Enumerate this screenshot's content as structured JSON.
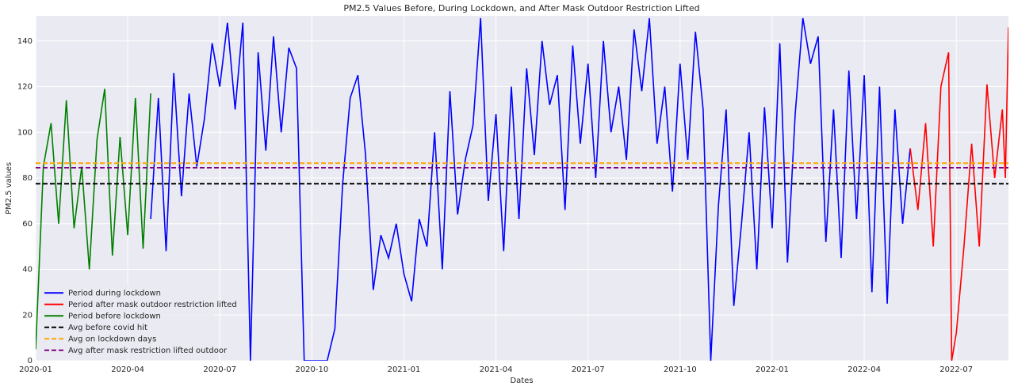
{
  "chart_data": {
    "type": "line",
    "title": "PM2.5 Values Before, During Lockdown, and After Mask Outdoor Restriction Lifted",
    "x_label": "Dates",
    "y_label": "PM2.5 values",
    "xlim": [
      0,
      31.7
    ],
    "ylim": [
      0,
      151
    ],
    "xticks": [
      {
        "value": 0,
        "label": "2020-01"
      },
      {
        "value": 3,
        "label": "2020-04"
      },
      {
        "value": 6,
        "label": "2020-07"
      },
      {
        "value": 9,
        "label": "2020-10"
      },
      {
        "value": 12,
        "label": "2021-01"
      },
      {
        "value": 15,
        "label": "2021-04"
      },
      {
        "value": 18,
        "label": "2021-07"
      },
      {
        "value": 21,
        "label": "2021-10"
      },
      {
        "value": 24,
        "label": "2022-01"
      },
      {
        "value": 27,
        "label": "2022-04"
      },
      {
        "value": 30,
        "label": "2022-07"
      }
    ],
    "yticks": [
      0,
      20,
      40,
      60,
      80,
      100,
      120,
      140
    ],
    "grid": true,
    "legend": "lower left",
    "series": [
      {
        "name": "Period during lockdown",
        "color": "#0000ff",
        "x": [
          3.75,
          4,
          4.25,
          4.5,
          4.75,
          5,
          5.25,
          5.5,
          5.75,
          6,
          6.25,
          6.5,
          6.75,
          7,
          7.25,
          7.5,
          7.75,
          8,
          8.25,
          8.5,
          8.75,
          9,
          9.25,
          9.5,
          9.75,
          10,
          10.25,
          10.5,
          10.75,
          11,
          11.25,
          11.5,
          11.75,
          12,
          12.25,
          12.5,
          12.75,
          13,
          13.25,
          13.5,
          13.75,
          14,
          14.25,
          14.5,
          14.75,
          15,
          15.25,
          15.5,
          15.75,
          16,
          16.25,
          16.5,
          16.75,
          17,
          17.25,
          17.5,
          17.75,
          18,
          18.25,
          18.5,
          18.75,
          19,
          19.25,
          19.5,
          19.75,
          20,
          20.25,
          20.5,
          20.75,
          21,
          21.25,
          21.5,
          21.75,
          22,
          22.25,
          22.5,
          22.75,
          23,
          23.25,
          23.5,
          23.75,
          24,
          24.25,
          24.5,
          24.75,
          25,
          25.25,
          25.5,
          25.75,
          26,
          26.25,
          26.5,
          26.75,
          27,
          27.25,
          27.5,
          27.75,
          28,
          28.25,
          28.5
        ],
        "values": [
          62,
          115,
          48,
          126,
          72,
          117,
          85,
          106,
          139,
          120,
          148,
          110,
          148,
          0,
          135,
          92,
          142,
          100,
          137,
          128,
          0,
          0,
          0,
          0,
          14,
          77,
          115,
          125,
          90,
          31,
          55,
          45,
          60,
          38,
          26,
          62,
          50,
          100,
          40,
          118,
          64,
          88,
          103,
          150,
          70,
          108,
          48,
          120,
          62,
          128,
          90,
          140,
          112,
          125,
          66,
          138,
          95,
          130,
          80,
          140,
          100,
          120,
          88,
          145,
          118,
          150,
          95,
          120,
          74,
          130,
          88,
          144,
          110,
          0,
          68,
          110,
          24,
          60,
          100,
          40,
          111,
          58,
          139,
          43,
          108,
          150,
          130,
          142,
          52,
          110,
          45,
          127,
          62,
          125,
          30,
          120,
          25,
          110,
          60,
          93
        ]
      },
      {
        "name": "Period after mask outdoor restriction lifted",
        "color": "#ff0000",
        "x": [
          28.5,
          28.75,
          29,
          29.25,
          29.5,
          29.75,
          29.85,
          30,
          30.25,
          30.5,
          30.75,
          31,
          31.25,
          31.5,
          31.6,
          31.7
        ],
        "values": [
          93,
          66,
          104,
          50,
          120,
          135,
          0,
          12,
          50,
          95,
          50,
          121,
          80,
          110,
          80,
          146
        ]
      },
      {
        "name": "Period before lockdown",
        "color": "#008000",
        "x": [
          0,
          0.25,
          0.5,
          0.75,
          1,
          1.25,
          1.5,
          1.75,
          2,
          2.25,
          2.5,
          2.75,
          3,
          3.25,
          3.5,
          3.75
        ],
        "values": [
          5,
          85,
          104,
          60,
          114,
          58,
          85,
          40,
          97,
          119,
          46,
          98,
          55,
          115,
          49,
          117
        ]
      }
    ],
    "hlines": [
      {
        "name": "Avg before covid hit",
        "color": "#000000",
        "value": 77.5
      },
      {
        "name": "Avg on lockdown days",
        "color": "#ffa500",
        "value": 86.5
      },
      {
        "name": "Avg after mask restriction lifted outdoor",
        "color": "#800080",
        "value": 84.5
      }
    ]
  }
}
